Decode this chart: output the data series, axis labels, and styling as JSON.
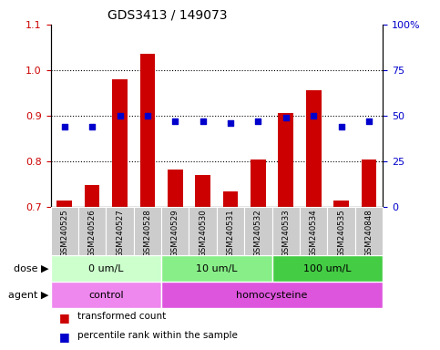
{
  "title": "GDS3413 / 149073",
  "samples": [
    "GSM240525",
    "GSM240526",
    "GSM240527",
    "GSM240528",
    "GSM240529",
    "GSM240530",
    "GSM240531",
    "GSM240532",
    "GSM240533",
    "GSM240534",
    "GSM240535",
    "GSM240848"
  ],
  "bar_values": [
    0.713,
    0.748,
    0.98,
    1.035,
    0.782,
    0.77,
    0.733,
    0.803,
    0.906,
    0.955,
    0.713,
    0.803
  ],
  "dot_values": [
    44,
    44,
    50,
    50,
    47,
    47,
    46,
    47,
    49,
    50,
    44,
    47
  ],
  "bar_color": "#cc0000",
  "dot_color": "#0000cc",
  "ylim_left": [
    0.7,
    1.1
  ],
  "ylim_right": [
    0,
    100
  ],
  "yticks_left": [
    0.7,
    0.8,
    0.9,
    1.0,
    1.1
  ],
  "yticks_right": [
    0,
    25,
    50,
    75,
    100
  ],
  "ytick_labels_right": [
    "0",
    "25",
    "50",
    "75",
    "100%"
  ],
  "dose_groups": [
    {
      "label": "0 um/L",
      "start": 0,
      "end": 4,
      "color": "#ccffcc"
    },
    {
      "label": "10 um/L",
      "start": 4,
      "end": 8,
      "color": "#88ee88"
    },
    {
      "label": "100 um/L",
      "start": 8,
      "end": 12,
      "color": "#44cc44"
    }
  ],
  "agent_groups": [
    {
      "label": "control",
      "start": 0,
      "end": 4,
      "color": "#ee88ee"
    },
    {
      "label": "homocysteine",
      "start": 4,
      "end": 12,
      "color": "#dd55dd"
    }
  ],
  "legend_bar_label": "transformed count",
  "legend_dot_label": "percentile rank within the sample",
  "dose_label": "dose",
  "agent_label": "agent",
  "background_color": "#ffffff",
  "plot_bg_color": "#ffffff",
  "tick_label_color_left": "#cc0000",
  "tick_label_color_right": "#0000cc",
  "sample_box_color": "#cccccc",
  "sample_box_edge": "#ffffff",
  "grid_yticks": [
    0.8,
    0.9,
    1.0
  ]
}
